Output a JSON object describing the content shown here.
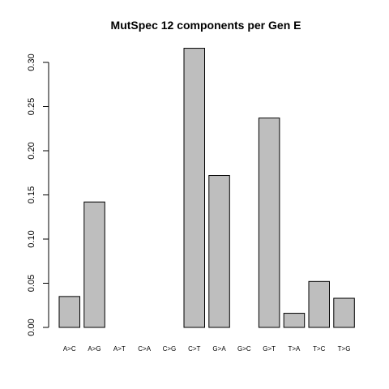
{
  "chart_data": {
    "type": "bar",
    "title": "MutSpec 12 components per Gen E",
    "xlabel": "",
    "ylabel": "",
    "categories": [
      "A>C",
      "A>G",
      "A>T",
      "C>A",
      "C>G",
      "C>T",
      "G>A",
      "G>C",
      "G>T",
      "T>A",
      "T>C",
      "T>G"
    ],
    "values": [
      0.035,
      0.142,
      0.0,
      0.0,
      0.0,
      0.316,
      0.172,
      0.0,
      0.237,
      0.016,
      0.052,
      0.033
    ],
    "ylim": [
      0,
      0.32
    ],
    "yticks": [
      "0.00",
      "0.05",
      "0.10",
      "0.15",
      "0.20",
      "0.25",
      "0.30"
    ],
    "bar_color": "#bebebe",
    "grid": false,
    "legend": "none"
  }
}
